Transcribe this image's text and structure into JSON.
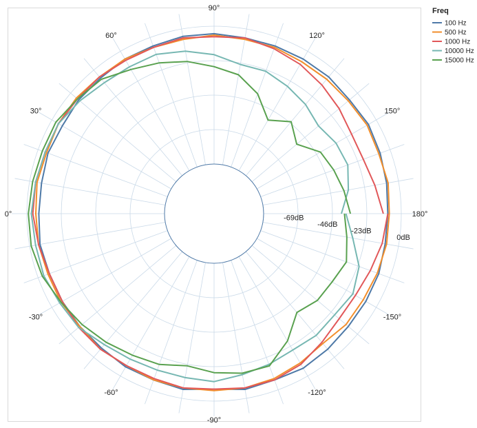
{
  "chart_data": {
    "type": "line",
    "subtype": "polar",
    "grid": true,
    "legend": {
      "title": "Freq",
      "placement": "top-right",
      "entries": [
        "100 Hz",
        "500 Hz",
        "1000 Hz",
        "10000 Hz",
        "15000 Hz"
      ]
    },
    "angle_ticks": [
      {
        "angle": 90,
        "label": "90°"
      },
      {
        "angle": 120,
        "label": "120°"
      },
      {
        "angle": 150,
        "label": "150°"
      },
      {
        "angle": 180,
        "label": "180°"
      },
      {
        "angle": -150,
        "label": "-150°"
      },
      {
        "angle": -120,
        "label": "-120°"
      },
      {
        "angle": -90,
        "label": "-90°"
      },
      {
        "angle": -60,
        "label": "-60°"
      },
      {
        "angle": -30,
        "label": "-30°"
      },
      {
        "angle": 0,
        "label": "0°"
      },
      {
        "angle": 30,
        "label": "30°"
      },
      {
        "angle": 60,
        "label": "60°"
      }
    ],
    "radial_ticks": [
      {
        "value": -69,
        "label": "-69dB"
      },
      {
        "value": -46,
        "label": "-46dB"
      },
      {
        "value": -23,
        "label": "-23dB"
      },
      {
        "value": 0,
        "label": "0dB"
      }
    ],
    "radial_range": [
      -92,
      0
    ],
    "theta": [
      -180,
      -170,
      -160,
      -150,
      -140,
      -130,
      -120,
      -110,
      -100,
      -90,
      -80,
      -70,
      -60,
      -50,
      -40,
      -30,
      -20,
      -10,
      0,
      10,
      20,
      30,
      40,
      50,
      60,
      70,
      80,
      90,
      100,
      110,
      120,
      130,
      140,
      150,
      160,
      170,
      180
    ],
    "series": [
      {
        "name": "100 Hz",
        "color": "#4e79a7",
        "values": [
          -9,
          -9,
          -8,
          -8,
          -8,
          -7,
          -6,
          -7,
          -6,
          -8,
          -6,
          -7,
          -7,
          -8,
          -8,
          -8,
          -8,
          -7,
          -8,
          -8,
          -7,
          -8,
          -7,
          -7,
          -6,
          -6,
          -5,
          -5,
          -6,
          -6,
          -6,
          -6,
          -7,
          -6,
          -7,
          -8,
          -9
        ]
      },
      {
        "name": "500 Hz",
        "color": "#f28e2b",
        "values": [
          -8,
          -8,
          -9,
          -10,
          -10,
          -12,
          -10,
          -8,
          -7,
          -7,
          -7,
          -7,
          -8,
          -7,
          -8,
          -7,
          -7,
          -6,
          -6,
          -5,
          -6,
          -5,
          -5,
          -6,
          -6,
          -7,
          -7,
          -6,
          -7,
          -7,
          -8,
          -8,
          -8,
          -7,
          -8,
          -7,
          -8
        ]
      },
      {
        "name": "1000 Hz",
        "color": "#e15759",
        "values": [
          -9,
          -11,
          -14,
          -16,
          -16,
          -13,
          -9,
          -7,
          -7,
          -8,
          -7,
          -8,
          -8,
          -7,
          -7,
          -8,
          -8,
          -6,
          -4,
          -4,
          -5,
          -5,
          -6,
          -6,
          -7,
          -7,
          -6,
          -7,
          -6,
          -8,
          -10,
          -13,
          -16,
          -19,
          -19,
          -16,
          -12
        ]
      },
      {
        "name": "10000 Hz",
        "color": "#76b7b2",
        "values": [
          -37,
          -31,
          -22,
          -18,
          -20,
          -19,
          -20,
          -18,
          -16,
          -13,
          -14,
          -14,
          -13,
          -11,
          -7,
          -6,
          -4,
          -4,
          -3,
          -4,
          -5,
          -5,
          -8,
          -11,
          -12,
          -12,
          -15,
          -19,
          -24,
          -24,
          -27,
          -30,
          -34,
          -31,
          -30,
          -34,
          -40
        ]
      },
      {
        "name": "15000 Hz",
        "color": "#59a14f",
        "values": [
          -38,
          -35,
          -31,
          -34,
          -35,
          -39,
          -27,
          -17,
          -17,
          -19,
          -22,
          -18,
          -16,
          -13,
          -10,
          -7,
          -3,
          -1,
          -1,
          -2,
          -3,
          -3,
          -6,
          -8,
          -14,
          -18,
          -22,
          -27,
          -31,
          -40,
          -53,
          -45,
          -53,
          -43,
          -40,
          -37,
          -34
        ]
      }
    ]
  }
}
